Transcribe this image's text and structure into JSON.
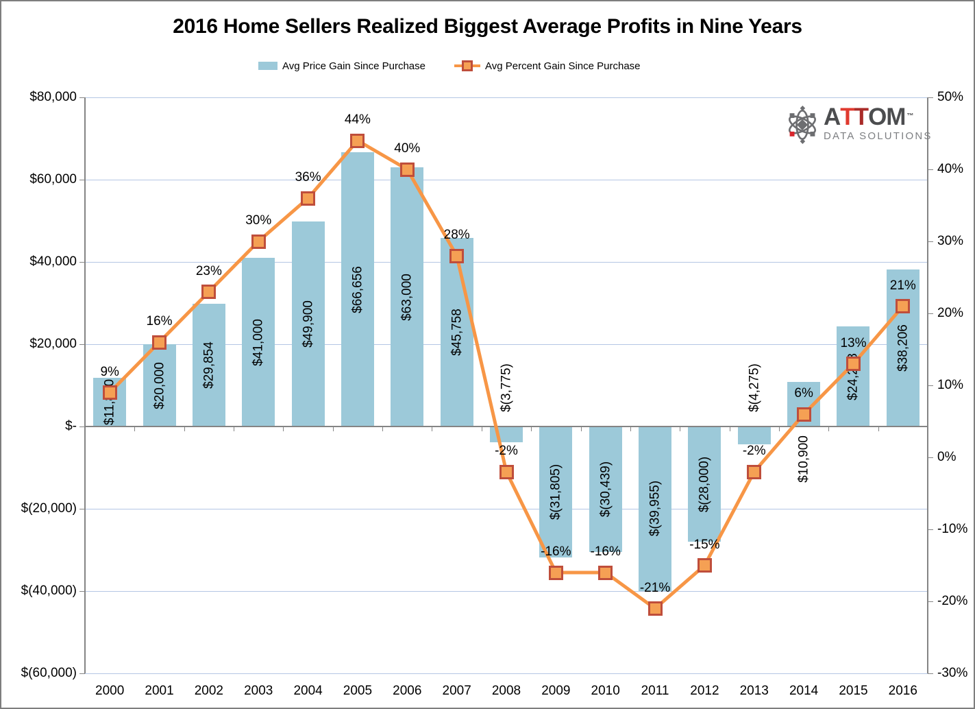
{
  "header": {
    "title": "2016 Home Sellers Realized Biggest Average Profits in Nine Years"
  },
  "legend": [
    {
      "label": "Avg Price Gain Since Purchase",
      "type": "bar-swatch"
    },
    {
      "label": "Avg Percent Gain Since Purchase",
      "type": "line-marker"
    }
  ],
  "logo": {
    "a": "A",
    "t1": "T",
    "t2": "T",
    "om": "OM",
    "tm": "™",
    "subtitle": "DATA SOLUTIONS"
  },
  "colors": {
    "bar": "#9CC9D9",
    "line": "#F79646",
    "marker_fill": "#F5A054",
    "marker_border": "#BF4E3B",
    "gridline": "#B4C6E4",
    "axis": "#848484",
    "text": "#000000",
    "logo_gray": "#4C4D4F",
    "logo_red_bright": "#E03A2F",
    "logo_red_dark": "#A92B28",
    "logo_sub_gray": "#7D7F82",
    "logo_icon_gray": "#6D6E71",
    "logo_icon_red": "#D9272E"
  },
  "chart_data": {
    "type": "combo-bar-line",
    "title": "2016 Home Sellers Realized Biggest Average Profits in Nine Years",
    "categories": [
      "2000",
      "2001",
      "2002",
      "2003",
      "2004",
      "2005",
      "2006",
      "2007",
      "2008",
      "2009",
      "2010",
      "2011",
      "2012",
      "2013",
      "2014",
      "2015",
      "2016"
    ],
    "series": [
      {
        "name": "Avg Price Gain Since Purchase",
        "type": "bar",
        "axis": "left",
        "values": [
          11800,
          20000,
          29854,
          41000,
          49900,
          66656,
          63000,
          45758,
          -3775,
          -31805,
          -30439,
          -39955,
          -28000,
          -4275,
          10900,
          24288,
          38206
        ],
        "labels": [
          "$11,800",
          "$20,000",
          "$29,854",
          "$41,000",
          "$49,900",
          "$66,656",
          "$63,000",
          "$45,758",
          "$(3,775)",
          "$(31,805)",
          "$(30,439)",
          "$(39,955)",
          "$(28,000)",
          "$(4,275)",
          "$10,900",
          "$24,288",
          "$38,206"
        ],
        "label_pos": [
          "center",
          "center",
          "center",
          "center",
          "center",
          "center",
          "center",
          "center",
          "above_axis",
          "center",
          "center",
          "center",
          "center",
          "above_axis",
          "below_axis",
          "center",
          "center"
        ]
      },
      {
        "name": "Avg Percent Gain Since Purchase",
        "type": "line",
        "axis": "right",
        "values": [
          9,
          16,
          23,
          30,
          36,
          44,
          40,
          28,
          -2,
          -16,
          -16,
          -21,
          -15,
          -2,
          6,
          13,
          21
        ],
        "labels": [
          "9%",
          "16%",
          "23%",
          "30%",
          "36%",
          "44%",
          "40%",
          "28%",
          "-2%",
          "-16%",
          "-16%",
          "-21%",
          "-15%",
          "-2%",
          "6%",
          "13%",
          "21%"
        ]
      }
    ],
    "left_axis": {
      "min": -60000,
      "max": 80000,
      "step": 20000,
      "tick_labels": [
        "$80,000",
        "$60,000",
        "$40,000",
        "$20,000",
        "$-",
        "$(20,000)",
        "$(40,000)",
        "$(60,000)"
      ]
    },
    "right_axis": {
      "min": -30,
      "max": 50,
      "step": 10,
      "tick_labels": [
        "50%",
        "40%",
        "30%",
        "20%",
        "10%",
        "0%",
        "-10%",
        "-20%",
        "-30%"
      ]
    },
    "grid": true,
    "legend_position": "top"
  }
}
